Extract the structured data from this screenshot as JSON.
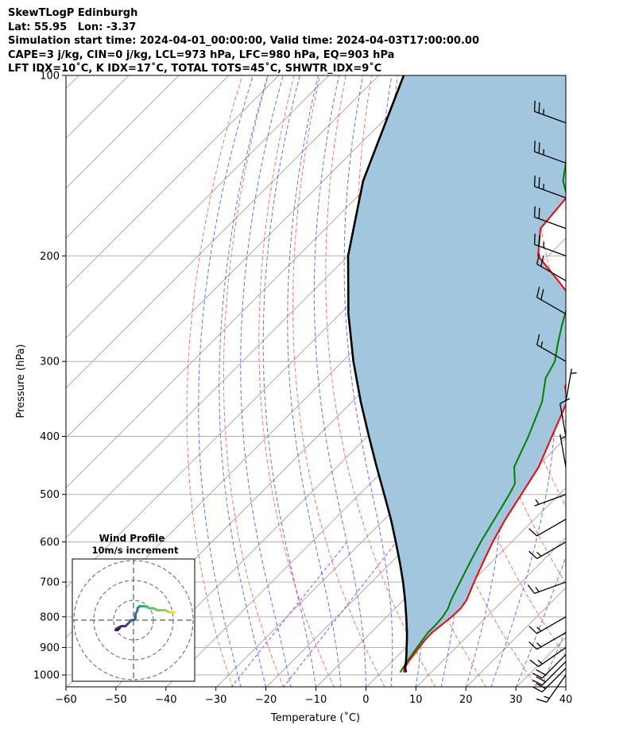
{
  "header": {
    "line1": "SkewTLogP Edinburgh",
    "line2": "Lat: 55.95   Lon: -3.37",
    "line3": "Simulation start time: 2024-04-01_00:00:00, Valid time: 2024-04-03T17:00:00.00",
    "line4": "CAPE=3 j/kg, CIN=0 j/kg, LCL=973 hPa, LFC=980 hPa, EQ=903 hPa",
    "line5": "LFT IDX=10˚C, K IDX=17˚C, TOTAL TOTS=45˚C, SHWTR_IDX=9˚C"
  },
  "chart_data": {
    "type": "skewt-logp",
    "xlabel": "Temperature (˚C)",
    "ylabel": "Pressure (hPa)",
    "xlim": [
      -60,
      40
    ],
    "ylim": [
      1050,
      100
    ],
    "x_ticks": [
      -60,
      -50,
      -40,
      -30,
      -20,
      -10,
      0,
      10,
      20,
      30,
      40
    ],
    "y_ticks": [
      100,
      200,
      300,
      400,
      500,
      600,
      700,
      800,
      900,
      1000
    ],
    "colors": {
      "temperature": "#ff0000",
      "dewpoint": "#008000",
      "parcel": "#000000",
      "cape_fill": "#a3c6df",
      "dry_adiabat": "#ff5555",
      "moist_adiabat": "#4455ff",
      "isotherm": "#aaaaaa",
      "mixing_ratio": "#9933cc"
    },
    "temperature": {
      "pressure": [
        990,
        975,
        950,
        925,
        900,
        875,
        850,
        825,
        800,
        775,
        750,
        700,
        650,
        600,
        550,
        500,
        450,
        400,
        350,
        330,
        300,
        280,
        260,
        240,
        220,
        200,
        180,
        160,
        140,
        120,
        100
      ],
      "values": [
        4.5,
        3.8,
        3.3,
        3.0,
        2.6,
        2.3,
        2.2,
        2.6,
        3.0,
        3.1,
        2.6,
        0.5,
        -1.6,
        -3.8,
        -5.8,
        -7.6,
        -9.6,
        -13.1,
        -17.0,
        -20.5,
        -22.0,
        -25.0,
        -29.0,
        -35.0,
        -43.0,
        -52.0,
        -57.0,
        -58.0,
        -60.0,
        -62.5,
        -63.5
      ]
    },
    "dewpoint": {
      "pressure": [
        990,
        975,
        950,
        925,
        900,
        875,
        850,
        825,
        800,
        775,
        750,
        700,
        650,
        600,
        550,
        500,
        480,
        450,
        400,
        350,
        320,
        300,
        280,
        260,
        240,
        220,
        200,
        150,
        100
      ],
      "values": [
        3.8,
        3.5,
        3.0,
        2.6,
        2.2,
        1.8,
        1.4,
        1.4,
        1.2,
        0.6,
        -0.5,
        -2.3,
        -4.2,
        -6.2,
        -8.0,
        -10.0,
        -11.0,
        -14.5,
        -17.8,
        -22.0,
        -26.0,
        -27.5,
        -30.5,
        -33.5,
        -36.5,
        -40.0,
        -43.0,
        -62.0,
        -80.0
      ]
    },
    "parcel": {
      "pressure": [
        990,
        975,
        950,
        925,
        900,
        875,
        850,
        800,
        750,
        700,
        650,
        600,
        550,
        500,
        450,
        400,
        350,
        300,
        250,
        200,
        150,
        100
      ],
      "values": [
        5.0,
        4.0,
        2.8,
        1.5,
        0.1,
        -1.3,
        -2.8,
        -6.1,
        -9.7,
        -13.7,
        -18.2,
        -23.2,
        -28.7,
        -35.0,
        -42.0,
        -49.7,
        -58.3,
        -67.8,
        -78.3,
        -90.0,
        -102.0,
        -115.0
      ]
    },
    "wind_barbs": {
      "pressure": [
        1000,
        975,
        950,
        925,
        900,
        850,
        800,
        700,
        600,
        550,
        500,
        450,
        400,
        350,
        300,
        250,
        220,
        200,
        180,
        160,
        140,
        120
      ],
      "speed_kt": [
        15,
        20,
        20,
        20,
        15,
        15,
        15,
        15,
        15,
        10,
        5,
        5,
        10,
        5,
        15,
        20,
        20,
        25,
        20,
        25,
        25,
        25
      ],
      "direction_deg": [
        215,
        225,
        225,
        225,
        235,
        240,
        240,
        250,
        240,
        240,
        250,
        350,
        350,
        10,
        300,
        300,
        300,
        290,
        290,
        290,
        290,
        290
      ]
    },
    "wind_profile": {
      "title": "Wind Profile",
      "subtitle": "10m/s increment",
      "rings": [
        10,
        20,
        30
      ],
      "u": [
        -7,
        -8,
        -9,
        -8,
        -6,
        -4,
        -3,
        -2,
        -1,
        0,
        1,
        1,
        2,
        2,
        3,
        3,
        4,
        4,
        5,
        6,
        8,
        10,
        12,
        14,
        16,
        18,
        19,
        20,
        21,
        21
      ],
      "v": [
        -4,
        -5,
        -5,
        -4,
        -3,
        -3,
        -2,
        -1,
        0,
        0,
        1,
        3,
        5,
        6,
        7,
        7,
        7,
        7,
        7,
        7,
        6,
        6,
        5,
        5,
        5,
        4,
        4,
        4,
        4,
        4
      ]
    }
  }
}
